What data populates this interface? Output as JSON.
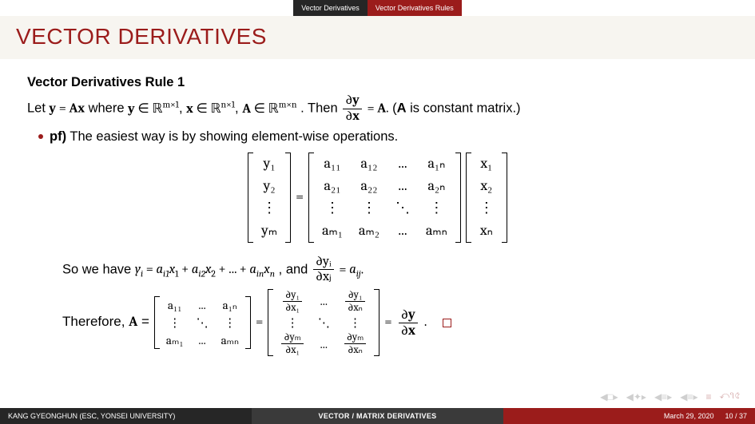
{
  "topbar": {
    "section": "Vector Derivatives",
    "subsection": "Vector Derivatives Rules"
  },
  "title": "VECTOR DERIVATIVES",
  "block": {
    "heading": "Vector Derivatives Rule 1",
    "let_prefix": "Let ",
    "let_eq": "y = Ax",
    "let_where": " where ",
    "space_y": "y ∈ ℝ",
    "space_y_dim": "m×1",
    "space_x": "x ∈ ℝ",
    "space_x_dim": "n×1",
    "space_A": "A ∈ ℝ",
    "space_A_dim": "m×n",
    "then": ". Then ",
    "dy": "∂y",
    "dx": "∂x",
    "eqA": " = A.",
    "paren": " (A is constant matrix.)",
    "pf_label": "pf)",
    "pf_text": " The easiest way is by showing element-wise operations.",
    "so_pre": "So we have ",
    "yi_expand": "yᵢ = aᵢ₁x₁ + aᵢ₂x₂ + ... + aᵢₙxₙ",
    "and": ", and ",
    "dyi": "∂yᵢ",
    "dxj": "∂xⱼ",
    "eq_aij": " = aᵢⱼ.",
    "therefore": "Therefore, A = "
  },
  "matrices": {
    "y_col": [
      "y₁",
      "y₂",
      "⋮",
      "yₘ"
    ],
    "x_col": [
      "x₁",
      "x₂",
      "⋮",
      "xₙ"
    ],
    "A_full": [
      [
        "a₁₁",
        "a₁₂",
        "...",
        "a₁ₙ"
      ],
      [
        "a₂₁",
        "a₂₂",
        "...",
        "a₂ₙ"
      ],
      [
        "⋮",
        "⋮",
        "⋱",
        "⋮"
      ],
      [
        "aₘ₁",
        "aₘ₂",
        "...",
        "aₘₙ"
      ]
    ],
    "A_short": [
      [
        "a₁₁",
        "...",
        "a₁ₙ"
      ],
      [
        "⋮",
        "⋱",
        "⋮"
      ],
      [
        "aₘ₁",
        "...",
        "aₘₙ"
      ]
    ],
    "J": {
      "tl_n": "∂y₁",
      "tl_d": "∂x₁",
      "tr_n": "∂y₁",
      "tr_d": "∂xₙ",
      "bl_n": "∂yₘ",
      "bl_d": "∂x₁",
      "br_n": "∂yₘ",
      "br_d": "∂xₙ",
      "dots": "...",
      "vdots": "⋮",
      "ddots": "⋱"
    },
    "eq": "=",
    "final_n": "∂y",
    "final_d": "∂x",
    "period": "."
  },
  "footer": {
    "author": "KANG GYEONGHUN  (ESC, YONSEI UNIVERSITY)",
    "center": "VECTOR / MATRIX DERIVATIVES",
    "date": "March 29, 2020",
    "page": "10 / 37"
  },
  "colors": {
    "accent": "#9b1c1b",
    "dark": "#262626",
    "mid": "#3a3a3a",
    "bg_title": "#f7f5f0",
    "nav_gray": "#cfcfcf"
  }
}
